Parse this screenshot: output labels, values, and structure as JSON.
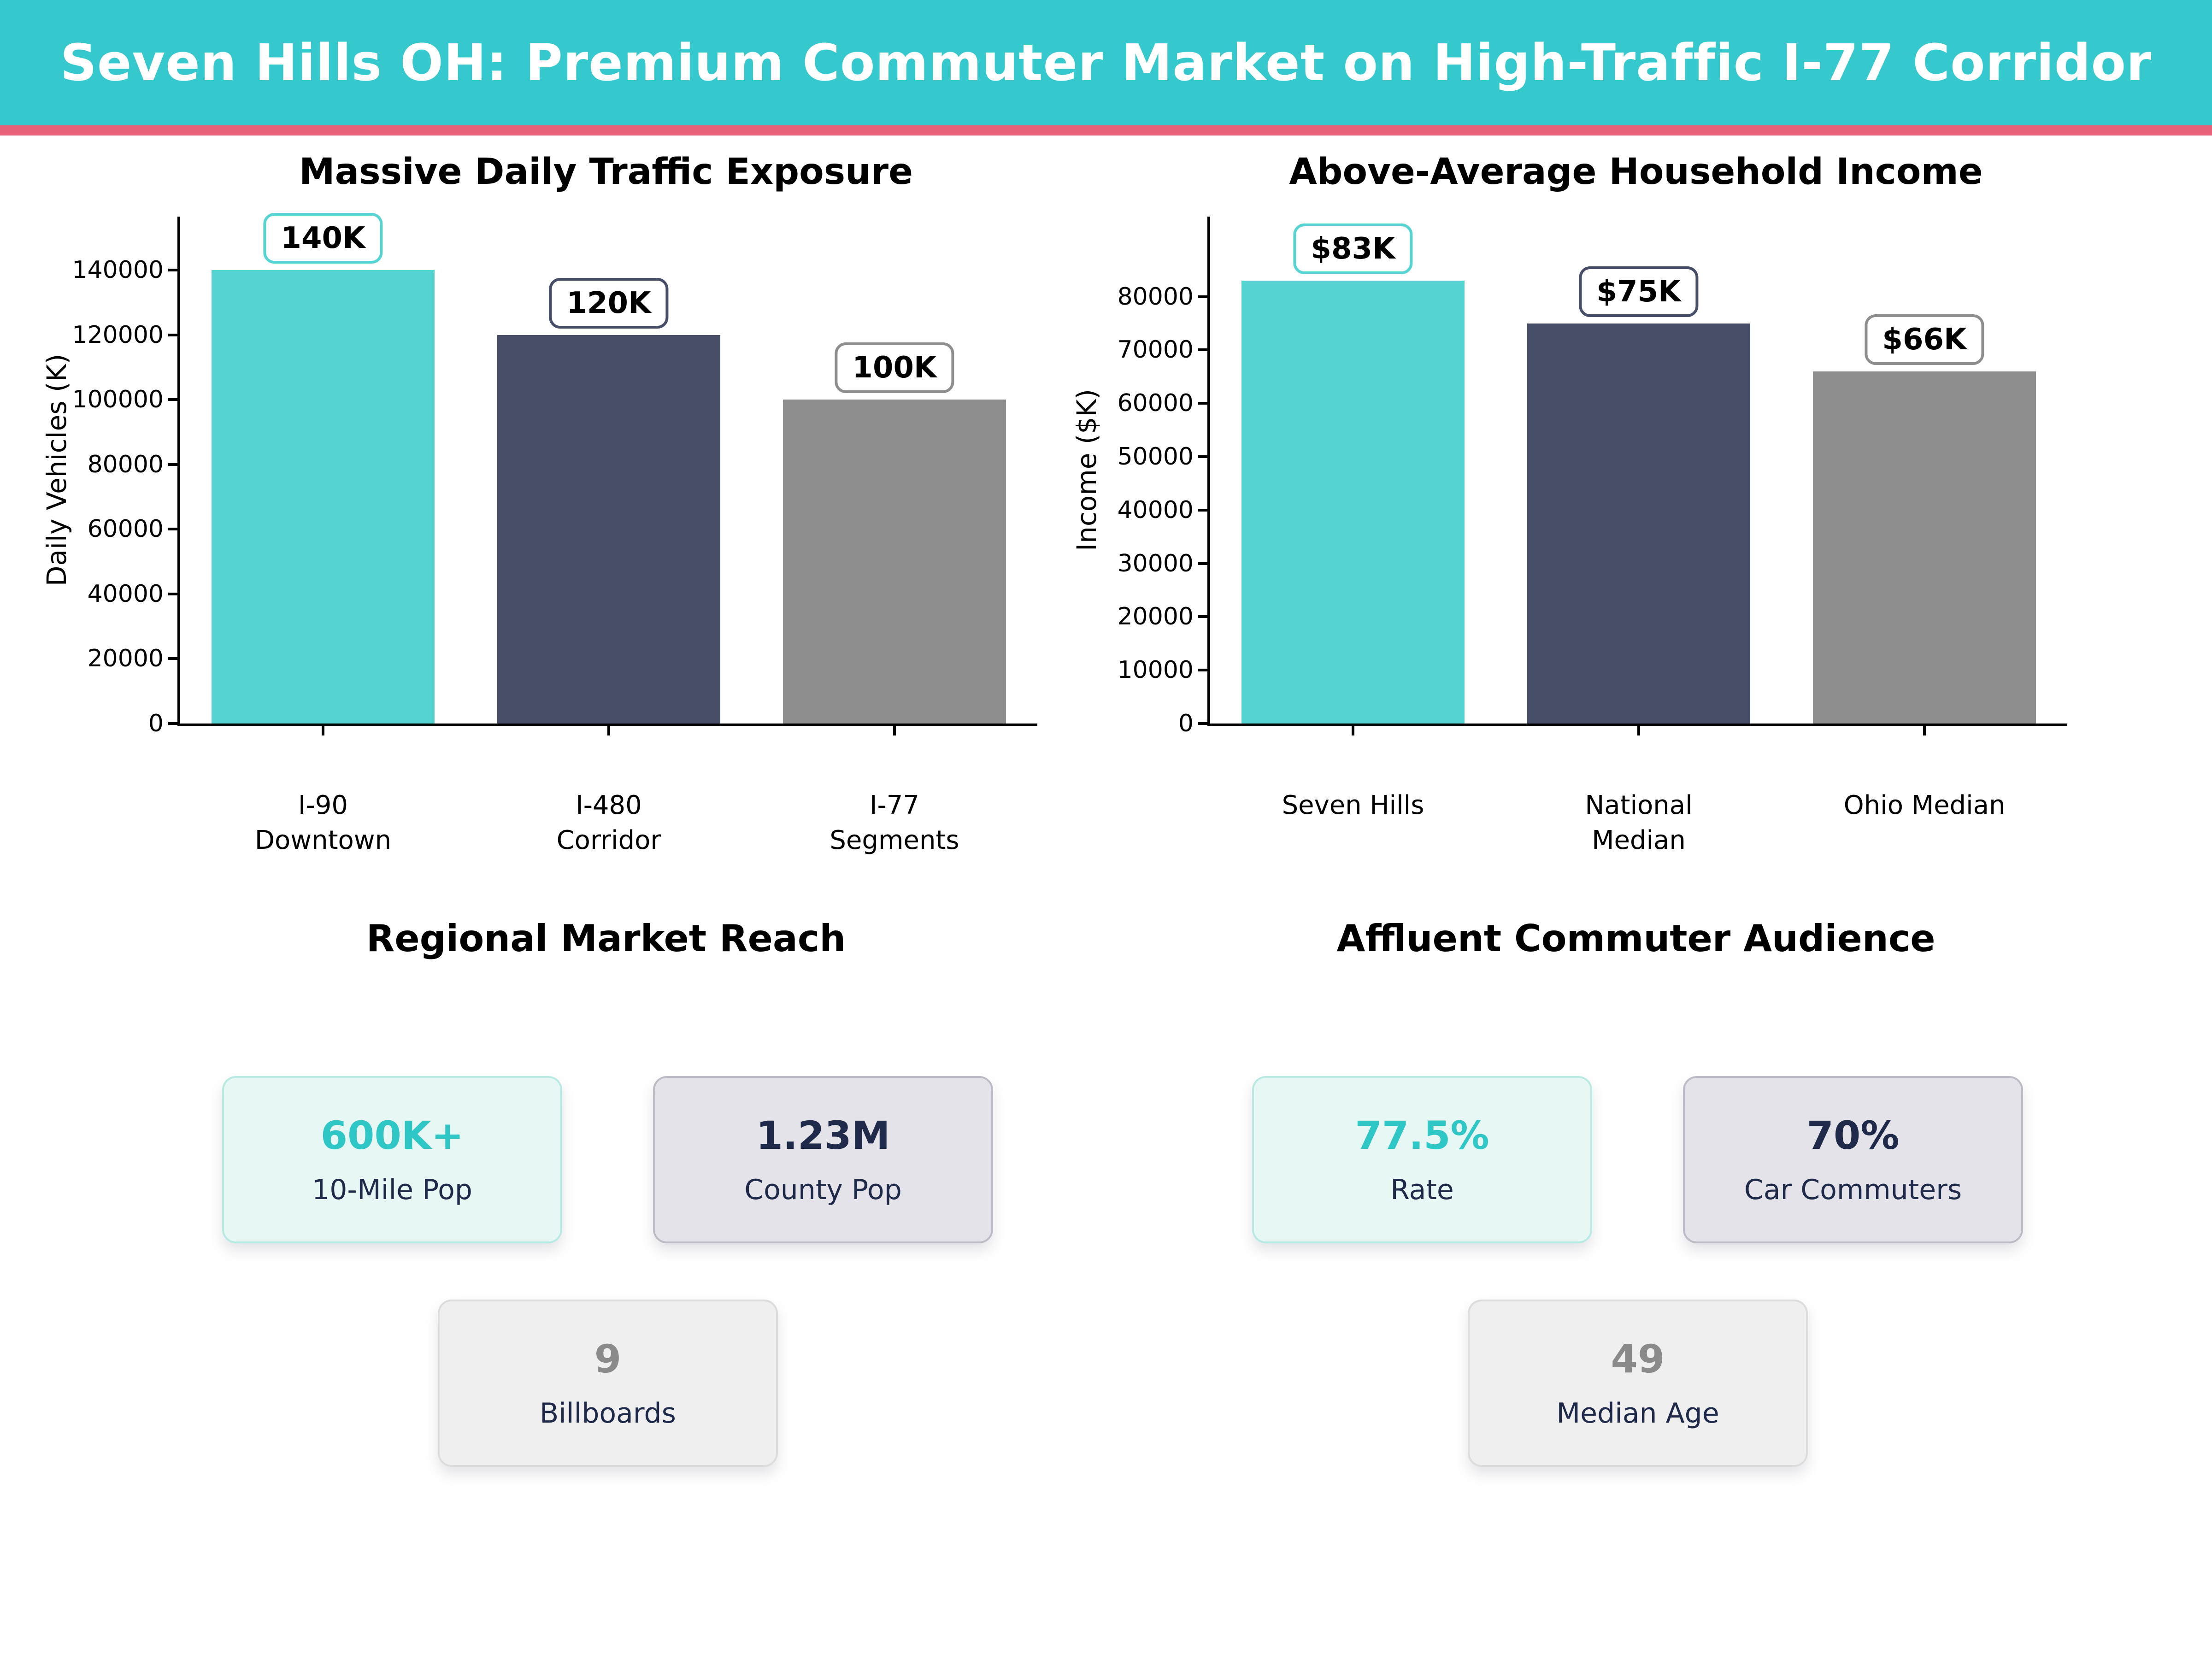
{
  "header": {
    "title": "Seven Hills OH: Premium Commuter Market on High-Traffic I-77 Corridor",
    "bg_color": "#35c9ce",
    "accent_line_color": "#e8627a",
    "title_color": "#ffffff"
  },
  "colors": {
    "teal_bar": "#55d4d1",
    "navy_bar": "#454e66",
    "gray_bar": "#8e8e8e",
    "teal_text": "#2fc7c5",
    "navy_text": "#1f2a4a",
    "gray_text": "#8a8a8a"
  },
  "chart_data": [
    {
      "type": "bar",
      "title": "Massive Daily Traffic Exposure",
      "xlabel": "",
      "ylabel": "Daily Vehicles (K)",
      "categories": [
        "I-90\nDowntown",
        "I-480\nCorridor",
        "I-77\nSegments"
      ],
      "values": [
        140000,
        120000,
        100000
      ],
      "bar_labels": [
        "140K",
        "120K",
        "100K"
      ],
      "bar_colors": [
        "#55d4d1",
        "#454e66",
        "#8e8e8e"
      ],
      "yticks": [
        0,
        20000,
        40000,
        60000,
        80000,
        100000,
        120000,
        140000
      ],
      "ylim": [
        0,
        156500
      ],
      "grid": false,
      "legend": null
    },
    {
      "type": "bar",
      "title": "Above-Average Household Income",
      "xlabel": "",
      "ylabel": "Income ($K)",
      "categories": [
        "Seven Hills",
        "National\nMedian",
        "Ohio Median"
      ],
      "values": [
        83000,
        75000,
        66000
      ],
      "bar_labels": [
        "$83K",
        "$75K",
        "$66K"
      ],
      "bar_colors": [
        "#55d4d1",
        "#454e66",
        "#8e8e8e"
      ],
      "yticks": [
        0,
        10000,
        20000,
        30000,
        40000,
        50000,
        60000,
        70000,
        80000
      ],
      "ylim": [
        0,
        95000
      ],
      "grid": false,
      "legend": null
    }
  ],
  "sections": [
    {
      "title": "Regional Market Reach",
      "cards": [
        {
          "value": "600K+",
          "label": "10-Mile Pop"
        },
        {
          "value": "1.23M",
          "label": "County Pop"
        },
        {
          "value": "9",
          "label": "Billboards"
        }
      ]
    },
    {
      "title": "Affluent Commuter Audience",
      "cards": [
        {
          "value": "77.5%",
          "label": "Rate"
        },
        {
          "value": "70%",
          "label": "Car Commuters"
        },
        {
          "value": "49",
          "label": "Median Age"
        }
      ]
    }
  ]
}
